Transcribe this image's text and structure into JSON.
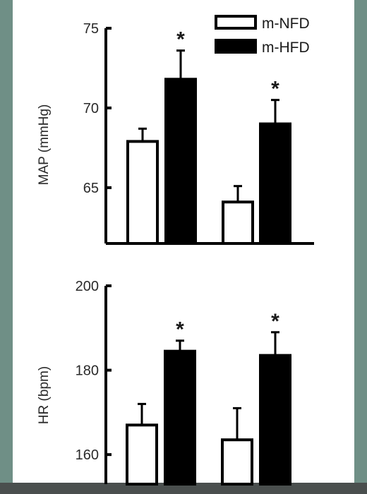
{
  "legend": {
    "entries": [
      {
        "label": "m-NFD",
        "color": "#ffffff"
      },
      {
        "label": "m-HFD",
        "color": "#000000"
      }
    ],
    "placement": "top-right"
  },
  "chart_data": [
    {
      "type": "bar",
      "ylabel": "MAP (mmHg)",
      "ylim": [
        61.5,
        75
      ],
      "yticks": [
        65,
        70,
        75
      ],
      "groups": 2,
      "series": [
        {
          "name": "m-NFD",
          "color": "#ffffff",
          "values": [
            67.9,
            64.1
          ],
          "errors": [
            0.8,
            1.0
          ],
          "significant": [
            false,
            false
          ]
        },
        {
          "name": "m-HFD",
          "color": "#000000",
          "values": [
            71.8,
            69.0
          ],
          "errors": [
            1.8,
            1.5
          ],
          "significant": [
            true,
            true
          ]
        }
      ],
      "significance_marker": "*"
    },
    {
      "type": "bar",
      "ylabel": "HR (bpm)",
      "ylim": [
        153,
        200
      ],
      "yticks": [
        160,
        180,
        200
      ],
      "groups": 2,
      "series": [
        {
          "name": "m-NFD",
          "color": "#ffffff",
          "values": [
            167,
            163.5
          ],
          "errors": [
            5.0,
            7.5
          ],
          "significant": [
            false,
            false
          ]
        },
        {
          "name": "m-HFD",
          "color": "#000000",
          "values": [
            184.5,
            183.5
          ],
          "errors": [
            2.5,
            5.5
          ],
          "significant": [
            true,
            true
          ]
        }
      ],
      "significance_marker": "*"
    }
  ]
}
